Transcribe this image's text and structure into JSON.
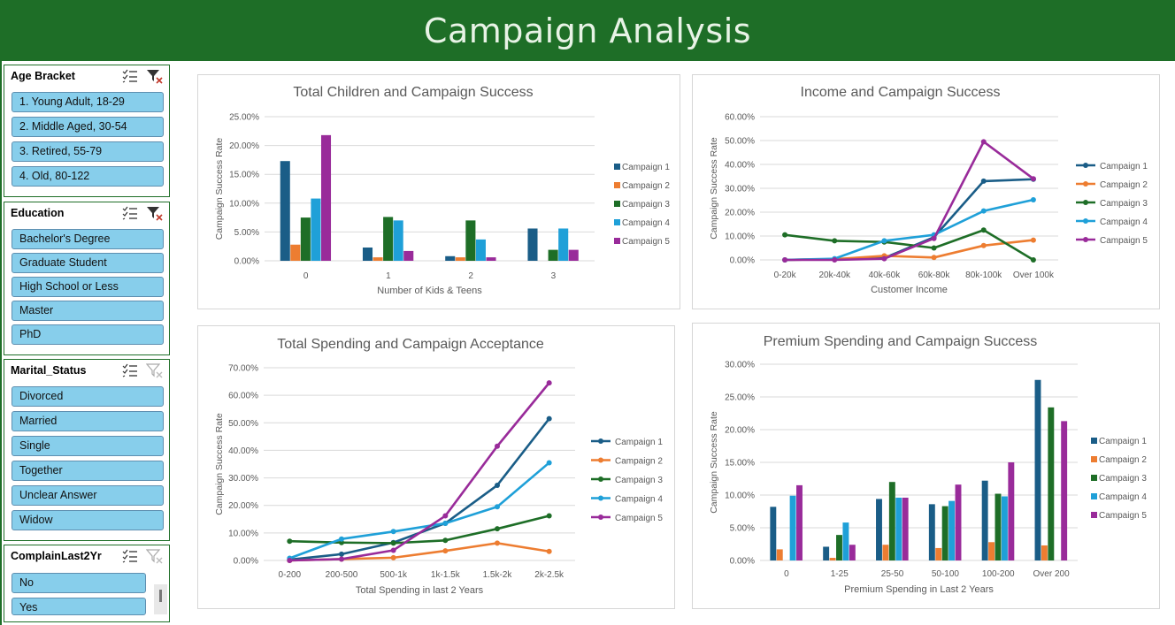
{
  "title": "Campaign Analysis",
  "colors": {
    "banner": "#1e6e27",
    "slicer_item": "#87ceeb",
    "series": [
      "#1a5d87",
      "#ed7d31",
      "#1e6e27",
      "#1fa0d8",
      "#992b9a"
    ]
  },
  "slicers": [
    {
      "title": "Age Bracket",
      "filtered": true,
      "items": [
        "1. Young Adult, 18-29",
        "2. Middle Aged, 30-54",
        "3. Retired, 55-79",
        "4. Old, 80-122"
      ]
    },
    {
      "title": "Education",
      "filtered": true,
      "items": [
        "Bachelor's Degree",
        "Graduate Student",
        "High School or Less",
        "Master",
        "PhD"
      ]
    },
    {
      "title": "Marital_Status",
      "filtered": false,
      "items": [
        "Divorced",
        "Married",
        "Single",
        "Together",
        "Unclear Answer",
        "Widow"
      ]
    },
    {
      "title": "ComplainLast2Yr",
      "filtered": false,
      "items": [
        "No",
        "Yes"
      ]
    }
  ],
  "chart_data": [
    {
      "type": "bar",
      "title": "Total Children and Campaign Success",
      "xlabel": "Number of Kids & Teens",
      "ylabel": "Campaign Success Rate",
      "ylim": [
        0,
        25
      ],
      "yticks": [
        "0.00%",
        "5.00%",
        "10.00%",
        "15.00%",
        "20.00%",
        "25.00%"
      ],
      "categories": [
        "0",
        "1",
        "2",
        "3"
      ],
      "legend": "right",
      "grid": true,
      "series": [
        {
          "name": "Campaign 1",
          "values": [
            17.3,
            2.3,
            0.8,
            5.6
          ]
        },
        {
          "name": "Campaign 2",
          "values": [
            2.8,
            0.6,
            0.6,
            0.0
          ]
        },
        {
          "name": "Campaign 3",
          "values": [
            7.5,
            7.6,
            7.0,
            1.9
          ]
        },
        {
          "name": "Campaign 4",
          "values": [
            10.8,
            7.0,
            3.7,
            5.6
          ]
        },
        {
          "name": "Campaign 5",
          "values": [
            21.8,
            1.7,
            0.6,
            1.9
          ]
        }
      ]
    },
    {
      "type": "line",
      "title": "Income and Campaign Success",
      "xlabel": "Customer Income",
      "ylabel": "Campaign Success Rate",
      "ylim": [
        0,
        60
      ],
      "yticks": [
        "0.00%",
        "10.00%",
        "20.00%",
        "30.00%",
        "40.00%",
        "50.00%",
        "60.00%"
      ],
      "categories": [
        "0-20k",
        "20k-40k",
        "40k-60k",
        "60k-80k",
        "80k-100k",
        "Over 100k"
      ],
      "legend": "right",
      "grid": true,
      "series": [
        {
          "name": "Campaign 1",
          "values": [
            0.0,
            0.3,
            0.8,
            9.5,
            33.0,
            33.8
          ]
        },
        {
          "name": "Campaign 2",
          "values": [
            0.0,
            0.3,
            1.7,
            1.0,
            6.0,
            8.3
          ]
        },
        {
          "name": "Campaign 3",
          "values": [
            10.5,
            8.0,
            7.5,
            5.0,
            12.5,
            0.0
          ]
        },
        {
          "name": "Campaign 4",
          "values": [
            0.0,
            0.5,
            8.0,
            10.5,
            20.5,
            25.2
          ]
        },
        {
          "name": "Campaign 5",
          "values": [
            0.0,
            0.0,
            0.5,
            9.0,
            49.5,
            34.0
          ]
        }
      ]
    },
    {
      "type": "line",
      "title": "Total Spending and Campaign Acceptance",
      "xlabel": "Total Spending in last 2 Years",
      "ylabel": "Campaign Success Rate",
      "ylim": [
        0,
        70
      ],
      "yticks": [
        "0.00%",
        "10.00%",
        "20.00%",
        "30.00%",
        "40.00%",
        "50.00%",
        "60.00%",
        "70.00%"
      ],
      "categories": [
        "0-200",
        "200-500",
        "500-1k",
        "1k-1.5k",
        "1.5k-2k",
        "2k-2.5k"
      ],
      "legend": "right",
      "grid": true,
      "series": [
        {
          "name": "Campaign 1",
          "values": [
            0.3,
            2.3,
            6.5,
            13.5,
            27.3,
            51.5
          ]
        },
        {
          "name": "Campaign 2",
          "values": [
            0.0,
            0.5,
            1.0,
            3.5,
            6.3,
            3.3
          ]
        },
        {
          "name": "Campaign 3",
          "values": [
            7.0,
            6.5,
            6.3,
            7.3,
            11.5,
            16.2
          ]
        },
        {
          "name": "Campaign 4",
          "values": [
            0.8,
            7.8,
            10.5,
            13.5,
            19.5,
            35.5
          ]
        },
        {
          "name": "Campaign 5",
          "values": [
            0.0,
            0.5,
            3.7,
            16.2,
            41.5,
            64.5
          ]
        }
      ]
    },
    {
      "type": "bar",
      "title": "Premium Spending and Campaign Success",
      "xlabel": "Premium Spending in Last 2 Years",
      "ylabel": "Campaign Success Rate",
      "ylim": [
        0,
        30
      ],
      "yticks": [
        "0.00%",
        "5.00%",
        "10.00%",
        "15.00%",
        "20.00%",
        "25.00%",
        "30.00%"
      ],
      "categories": [
        "0",
        "1-25",
        "25-50",
        "50-100",
        "100-200",
        "Over 200"
      ],
      "legend": "right",
      "grid": true,
      "series": [
        {
          "name": "Campaign 1",
          "values": [
            8.2,
            2.1,
            9.4,
            8.6,
            12.2,
            27.6
          ]
        },
        {
          "name": "Campaign 2",
          "values": [
            1.7,
            0.4,
            2.4,
            1.9,
            2.8,
            2.3
          ]
        },
        {
          "name": "Campaign 3",
          "values": [
            0.0,
            3.9,
            12.0,
            8.3,
            10.2,
            23.4
          ]
        },
        {
          "name": "Campaign 4",
          "values": [
            9.9,
            5.8,
            9.6,
            9.1,
            9.8,
            0.0
          ]
        },
        {
          "name": "Campaign 5",
          "values": [
            11.5,
            2.4,
            9.6,
            11.6,
            15.0,
            21.3
          ]
        }
      ]
    }
  ]
}
